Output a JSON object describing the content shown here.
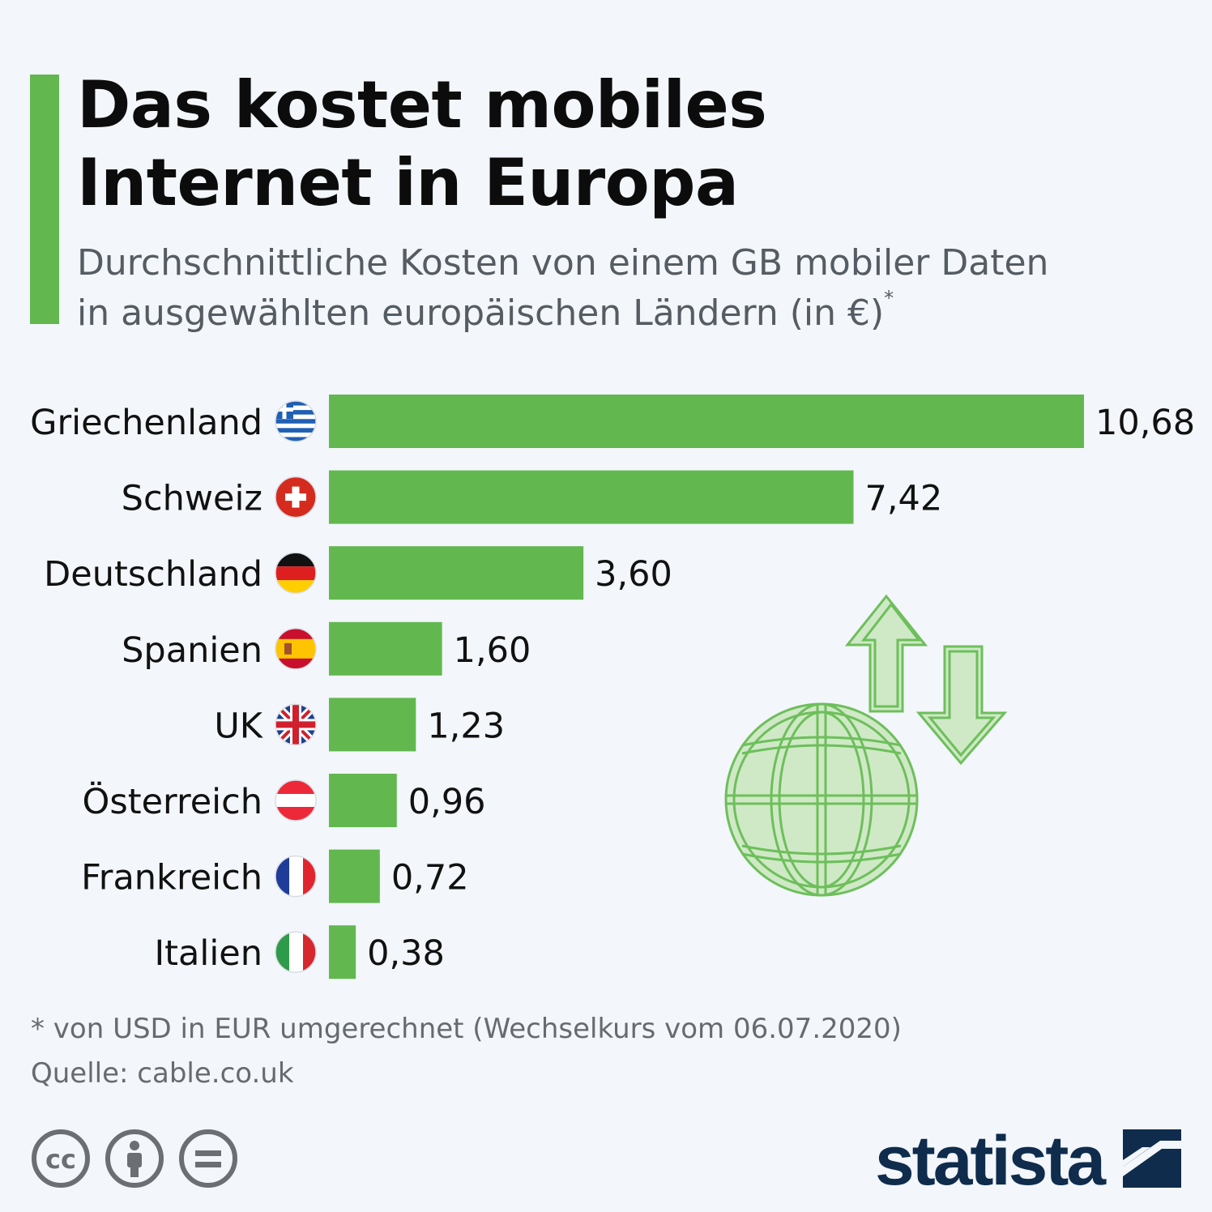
{
  "title_line1": "Das kostet mobiles",
  "title_line2": "Internet in Europa",
  "subtitle_line1": "Durchschnittliche Kosten von einem GB mobiler Daten",
  "subtitle_line2": "in ausgewählten europäischen Ländern (in €)",
  "subtitle_mark": "*",
  "colors": {
    "bar": "#62b84f",
    "accent": "#62b84f",
    "brand": "#0f2c4c"
  },
  "chart_data": {
    "type": "bar",
    "orientation": "horizontal",
    "title": "Das kostet mobiles Internet in Europa",
    "xlabel": "",
    "ylabel": "",
    "xlim": [
      0,
      10.68
    ],
    "grid": false,
    "legend": "none",
    "categories": [
      "Griechenland",
      "Schweiz",
      "Deutschland",
      "Spanien",
      "UK",
      "Österreich",
      "Frankreich",
      "Italien"
    ],
    "values": [
      10.68,
      7.42,
      3.6,
      1.6,
      1.23,
      0.96,
      0.72,
      0.38
    ],
    "value_labels": [
      "10,68",
      "7,42",
      "3,60",
      "1,60",
      "1,23",
      "0,96",
      "0,72",
      "0,38"
    ],
    "flags": [
      "greece-flag-icon",
      "switzerland-flag-icon",
      "germany-flag-icon",
      "spain-flag-icon",
      "uk-flag-icon",
      "austria-flag-icon",
      "france-flag-icon",
      "italy-flag-icon"
    ]
  },
  "footer": {
    "note": "* von USD in EUR umgerechnet (Wechselkurs vom 06.07.2020)",
    "source": "Quelle: cable.co.uk"
  },
  "license_icons": [
    "cc-icon",
    "attribution-icon",
    "no-derivatives-icon"
  ],
  "brand": "statista"
}
